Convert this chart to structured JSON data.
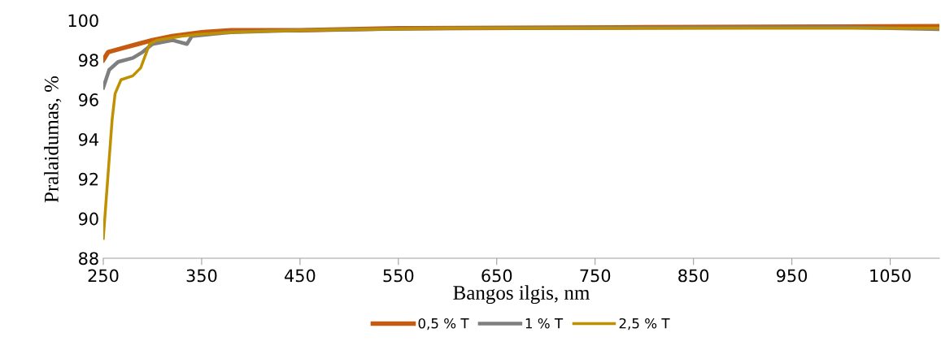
{
  "chart_data": {
    "type": "line",
    "xlabel": "Bangos ilgis, nm",
    "ylabel": "Pralaidumas, %",
    "xlim": [
      250,
      1100
    ],
    "xticks": [
      250,
      350,
      450,
      550,
      650,
      750,
      850,
      950,
      1050
    ],
    "ylim": [
      88,
      100
    ],
    "yticks": [
      88,
      90,
      92,
      94,
      96,
      98,
      100
    ],
    "grid": false,
    "legend": "bottom",
    "marker": "none",
    "line_style": "solid",
    "series": [
      {
        "name": "0,5 % T",
        "color": "#c55a11",
        "x": [
          250,
          255,
          270,
          285,
          300,
          320,
          350,
          380,
          450,
          550,
          800,
          1100
        ],
        "values": [
          98.0,
          98.4,
          98.6,
          98.8,
          99.0,
          99.2,
          99.4,
          99.5,
          99.5,
          99.6,
          99.65,
          99.7
        ]
      },
      {
        "name": "1 % T",
        "color": "#7f7f7f",
        "x": [
          250,
          256,
          265,
          280,
          290,
          300,
          320,
          335,
          340,
          360,
          380,
          450,
          600,
          1000,
          1100
        ],
        "values": [
          96.6,
          97.5,
          97.9,
          98.1,
          98.4,
          98.8,
          99.0,
          98.8,
          99.2,
          99.3,
          99.4,
          99.5,
          99.6,
          99.65,
          99.55
        ]
      },
      {
        "name": "2,5 % T",
        "color": "#bf9000",
        "x": [
          250,
          253,
          256,
          259,
          262,
          268,
          280,
          288,
          297,
          305,
          330,
          350,
          380,
          450,
          600,
          1100
        ],
        "values": [
          89.0,
          91.0,
          93.0,
          95.0,
          96.3,
          97.0,
          97.2,
          97.6,
          98.8,
          99.0,
          99.2,
          99.3,
          99.4,
          99.5,
          99.6,
          99.6
        ]
      }
    ]
  }
}
